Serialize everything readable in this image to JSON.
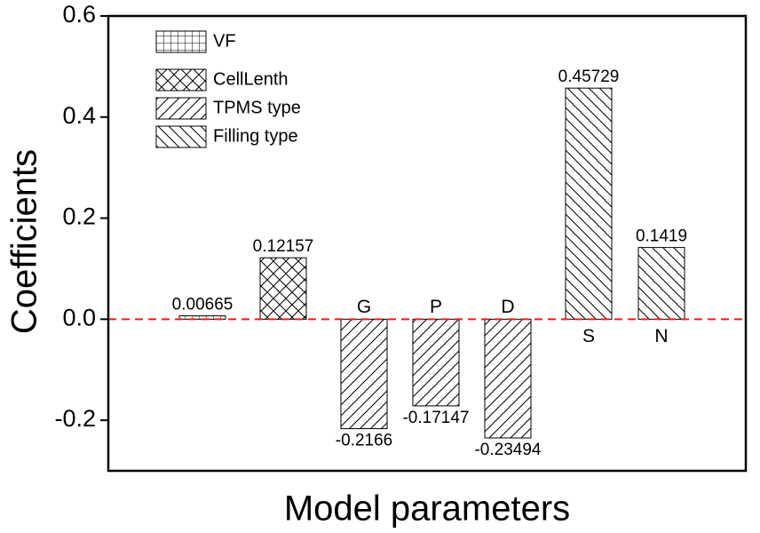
{
  "chart_data": {
    "type": "bar",
    "y_label": "Coefficients",
    "x_label": "Model parameters",
    "categories": [
      null,
      null,
      "G",
      "P",
      "D",
      "S",
      "N"
    ],
    "series": [
      {
        "name": "VF",
        "pattern": "grid",
        "values": [
          0.00665,
          null,
          null,
          null,
          null,
          null,
          null
        ]
      },
      {
        "name": "CellLenth",
        "pattern": "crosshatch",
        "values": [
          null,
          0.12157,
          null,
          null,
          null,
          null,
          null
        ]
      },
      {
        "name": "TPMS type",
        "pattern": "forward-diagonal",
        "values": [
          null,
          null,
          -0.2166,
          -0.17147,
          -0.23494,
          null,
          null
        ]
      },
      {
        "name": "Filling type",
        "pattern": "back-diagonal",
        "values": [
          null,
          null,
          null,
          null,
          null,
          0.45729,
          0.1419
        ]
      }
    ],
    "ylim": [
      -0.3,
      0.6
    ],
    "yticks": [
      -0.2,
      {
        "value": 0,
        "label": "0.0"
      },
      0.2,
      0.4,
      0.6
    ],
    "zero_line_color": "#e0231c",
    "legend": "upper left"
  }
}
